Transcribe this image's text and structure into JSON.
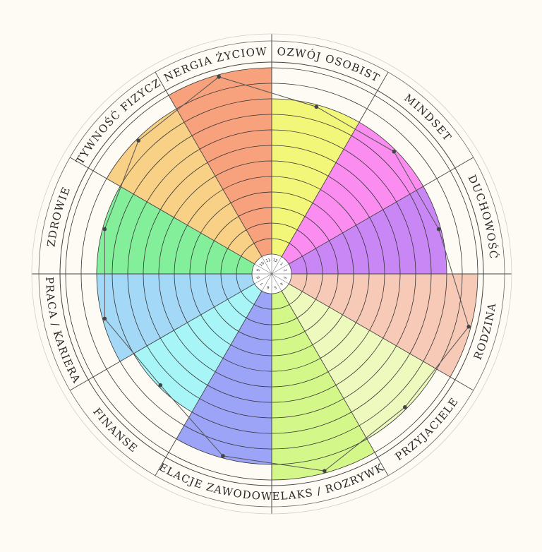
{
  "chart_data": {
    "type": "polar-area",
    "scale_max": 10,
    "categories": [
      {
        "label": "ROZWÓJ OSOBISTY",
        "score": 10,
        "color": "#f2f77a"
      },
      {
        "label": "MINDSET",
        "score": 10,
        "color": "#fb8cf0"
      },
      {
        "label": "DUCHOWOŚĆ",
        "score": 10,
        "color": "#c986f5"
      },
      {
        "label": "RODZINA",
        "score": 12,
        "color": "#f7c9b7"
      },
      {
        "label": "PRZYJACIELE",
        "score": 11,
        "color": "#eef9be"
      },
      {
        "label": "RELAKS / ROZRYWKA",
        "score": 12,
        "color": "#d4f789"
      },
      {
        "label": "RELACJE ZAWODOWE",
        "score": 11,
        "color": "#9ca4f7"
      },
      {
        "label": "FINANSE",
        "score": 9,
        "color": "#a7f5f7"
      },
      {
        "label": "PRACA / KARIERA",
        "score": 10,
        "color": "#a4d8f7"
      },
      {
        "label": "ZDROWIE",
        "score": 10,
        "color": "#84ef9b"
      },
      {
        "label": "AKTYWNOŚĆ FIZYCZNA",
        "score": 11,
        "color": "#f8d086"
      },
      {
        "label": "ENERGIA ŻYCIOWA",
        "score": 12,
        "color": "#f7a27d"
      }
    ],
    "center_numbers": [
      "12",
      "1",
      "2",
      "3",
      "4",
      "5",
      "6",
      "7",
      "8",
      "9",
      "10",
      "11"
    ],
    "profile_line_color": "#555555",
    "ring_color": "#333333"
  }
}
